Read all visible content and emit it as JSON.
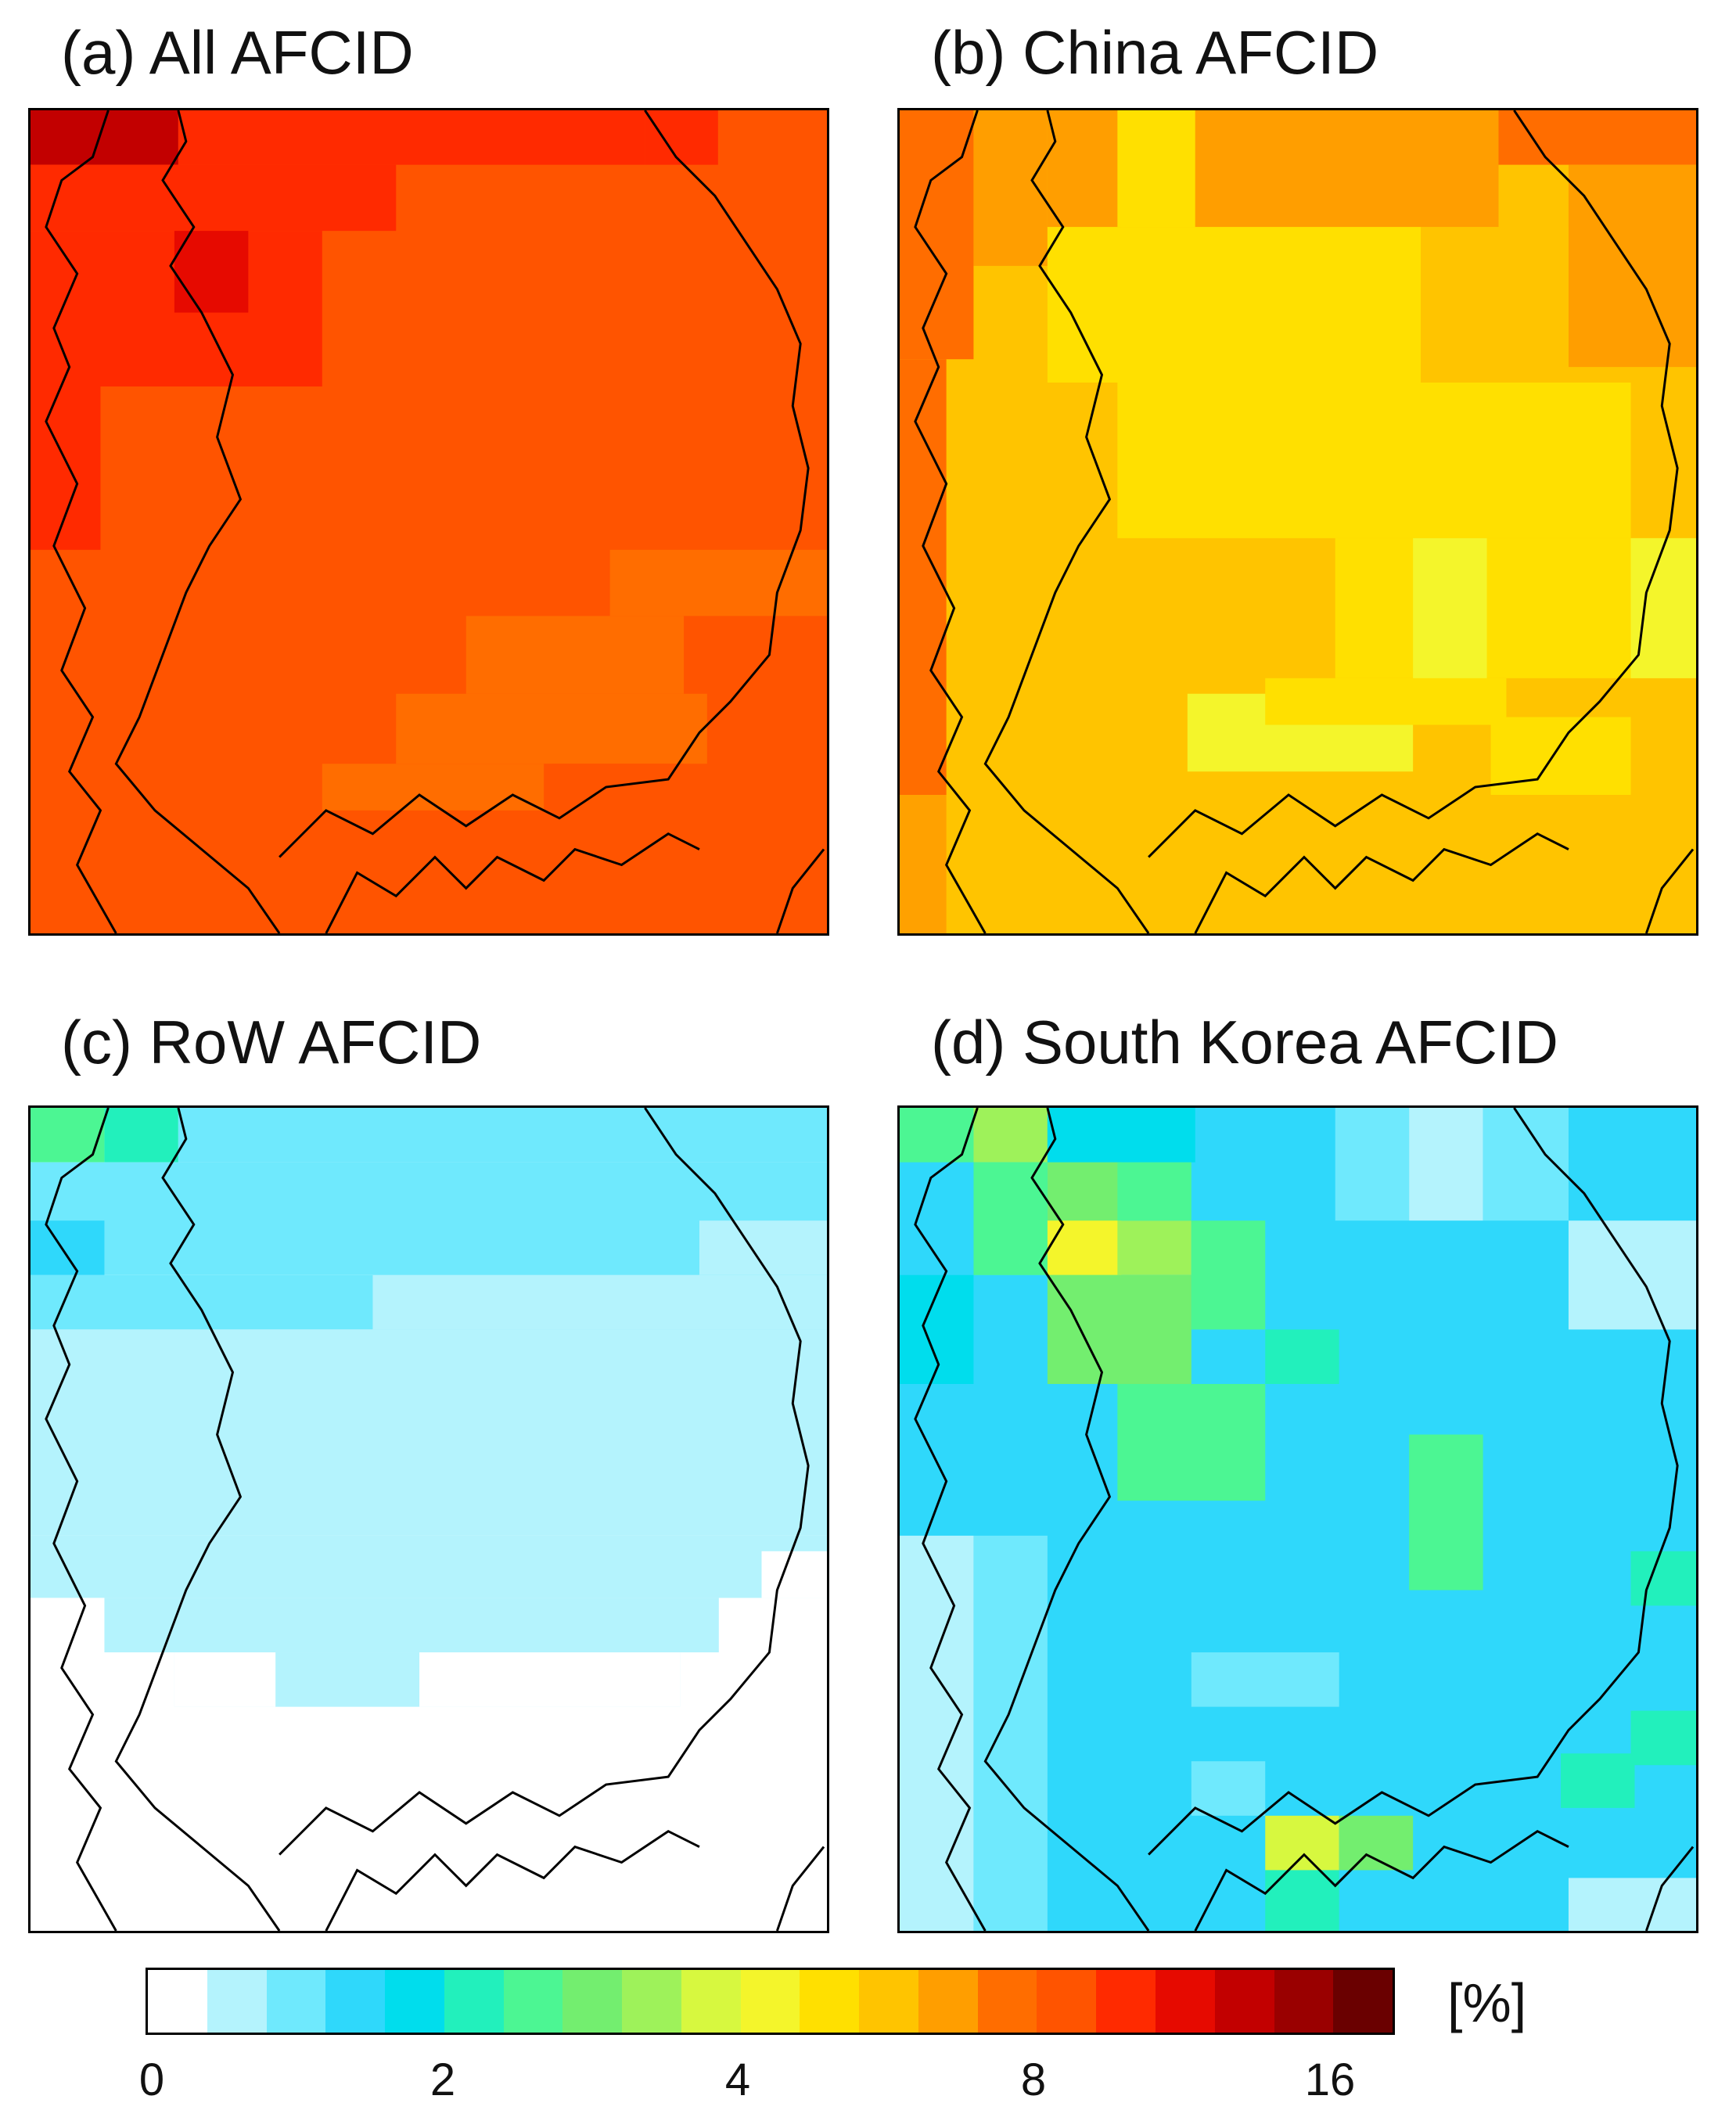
{
  "panels": [
    {
      "title": "(a) All AFCID"
    },
    {
      "title": "(b) China AFCID"
    },
    {
      "title": "(c) RoW AFCID"
    },
    {
      "title": "(d) South Korea AFCID"
    }
  ],
  "colorbar": {
    "colors": [
      "#ffffff",
      "#b4f3fd",
      "#6fe9fd",
      "#2fd8fb",
      "#00dded",
      "#22f0bc",
      "#4cf693",
      "#73ee6f",
      "#9ef25a",
      "#d7f83f",
      "#f4f52b",
      "#ffe000",
      "#ffc400",
      "#ff9e00",
      "#ff6d00",
      "#ff5400",
      "#ff2a00",
      "#e60a00",
      "#c20000",
      "#9a0000",
      "#6a0000"
    ],
    "ticks": [
      "0",
      "2",
      "4",
      "8",
      "16"
    ],
    "unit": "[%]"
  }
}
